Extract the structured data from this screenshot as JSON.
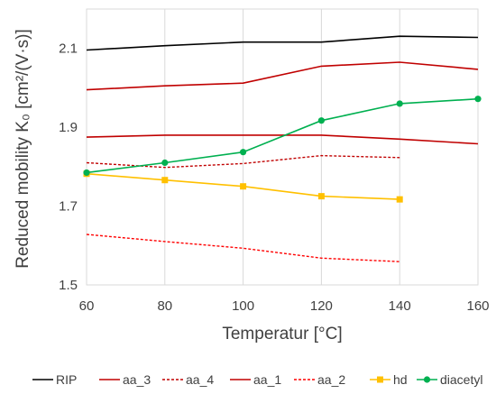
{
  "chart_data": {
    "type": "line",
    "xlabel": "Temperatur [°C]",
    "ylabel": "Reduced mobility K₀ [cm²/(V·s)]",
    "xlim": [
      60,
      160
    ],
    "ylim": [
      1.5,
      2.2
    ],
    "x_ticks": [
      60,
      80,
      100,
      120,
      140,
      160
    ],
    "y_ticks": [
      1.5,
      1.7,
      1.9,
      2.1
    ],
    "y_tick_labels": [
      "1.5",
      "1.7",
      "1.9",
      "2.1"
    ],
    "grid": "vertical",
    "legend_position": "bottom",
    "series": [
      {
        "name": "RIP",
        "color": "#000000",
        "dash": "solid",
        "marker": "none",
        "x": [
          60,
          80,
          100,
          120,
          140,
          160
        ],
        "y": [
          2.096,
          2.107,
          2.116,
          2.116,
          2.131,
          2.128
        ]
      },
      {
        "name": "aa_3",
        "color": "#c00000",
        "dash": "solid",
        "marker": "none",
        "x": [
          60,
          80,
          100,
          120,
          140,
          160
        ],
        "y": [
          1.995,
          2.005,
          2.012,
          2.055,
          2.065,
          2.047
        ]
      },
      {
        "name": "aa_4",
        "color": "#c00000",
        "dash": "dashed",
        "marker": "none",
        "x": [
          60,
          80,
          100,
          120,
          140
        ],
        "y": [
          1.81,
          1.798,
          1.808,
          1.828,
          1.823
        ]
      },
      {
        "name": "aa_1",
        "color": "#c00000",
        "dash": "solid",
        "marker": "none",
        "x": [
          60,
          80,
          100,
          120,
          140,
          160
        ],
        "y": [
          1.875,
          1.88,
          1.88,
          1.88,
          1.87,
          1.858
        ]
      },
      {
        "name": "aa_2",
        "color": "#ff0000",
        "dash": "dashed",
        "marker": "none",
        "x": [
          60,
          80,
          100,
          120,
          140
        ],
        "y": [
          1.628,
          1.61,
          1.593,
          1.568,
          1.559
        ]
      },
      {
        "name": "hd",
        "color": "#ffc000",
        "dash": "solid",
        "marker": "square",
        "x": [
          60,
          80,
          100,
          120,
          140
        ],
        "y": [
          1.782,
          1.766,
          1.75,
          1.725,
          1.717
        ]
      },
      {
        "name": "diacetyl",
        "color": "#00b050",
        "dash": "solid",
        "marker": "circle",
        "x": [
          60,
          80,
          100,
          120,
          140,
          160
        ],
        "y": [
          1.785,
          1.81,
          1.837,
          1.917,
          1.96,
          1.972
        ]
      }
    ]
  }
}
